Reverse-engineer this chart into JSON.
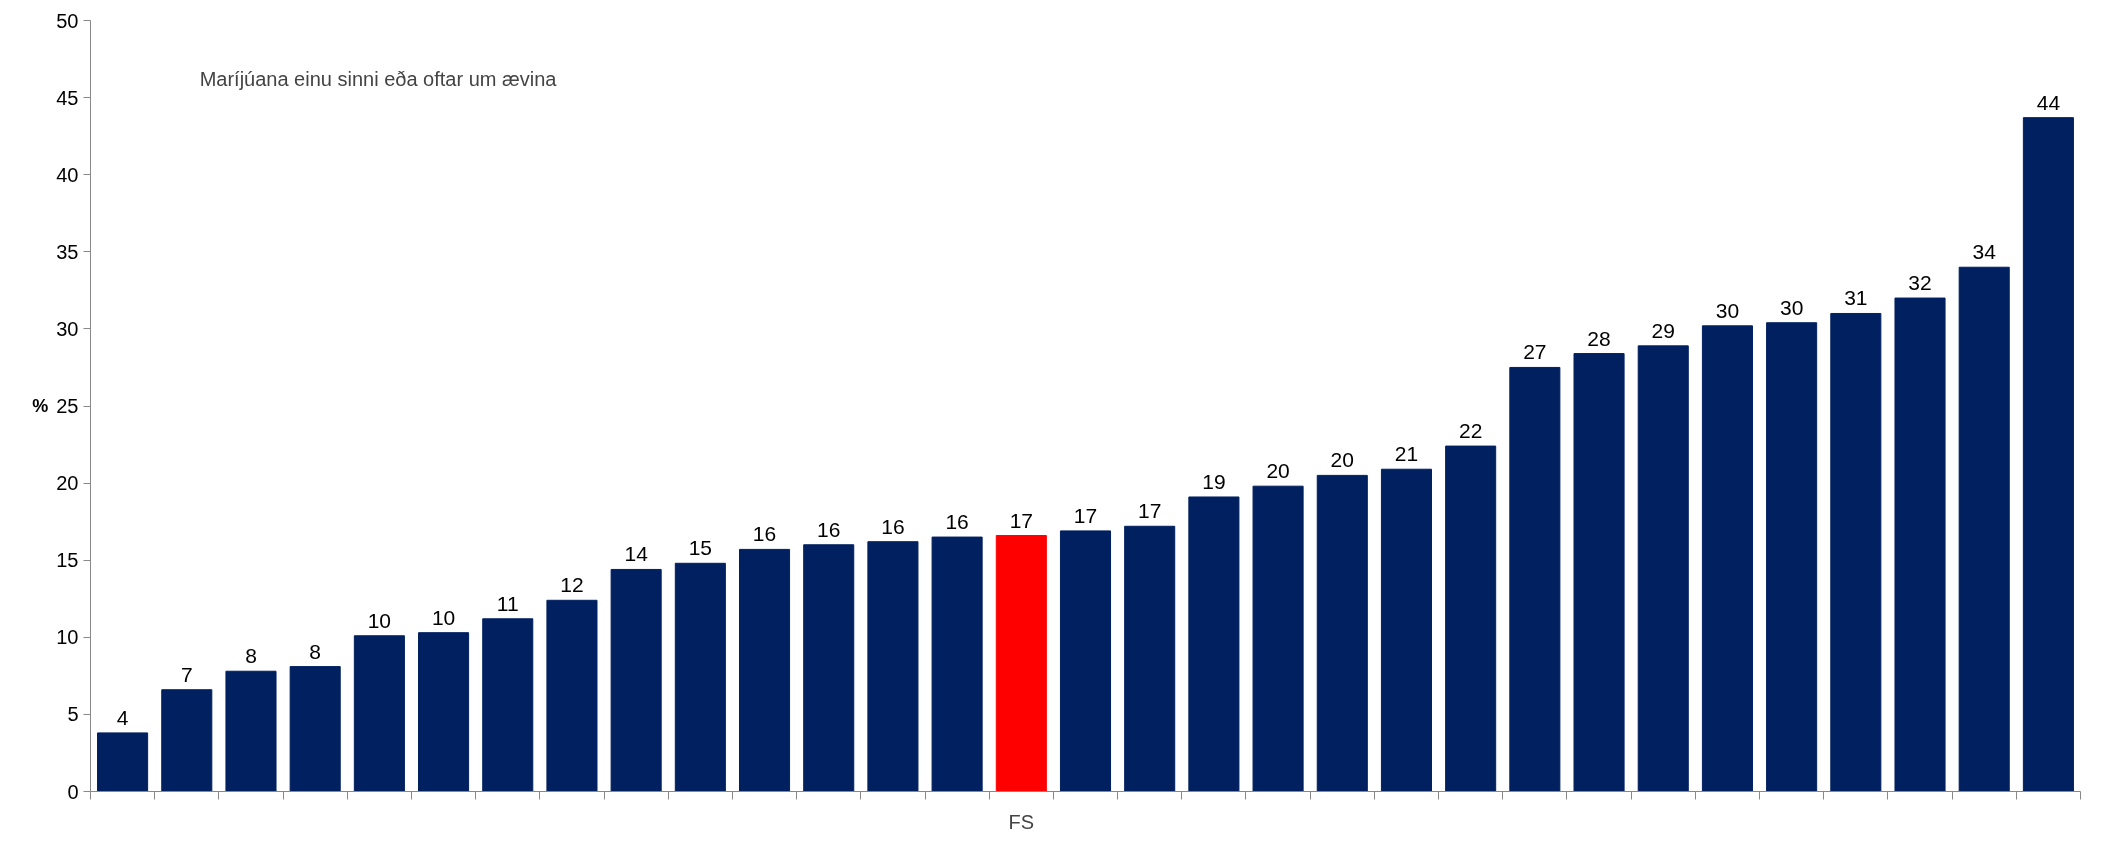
{
  "chart_data": {
    "type": "bar",
    "categories": [
      null,
      null,
      null,
      null,
      null,
      null,
      null,
      null,
      null,
      null,
      null,
      null,
      null,
      null,
      "FS",
      null,
      null,
      null,
      null,
      null,
      null,
      null,
      null,
      null,
      null,
      null,
      null,
      null,
      null,
      null,
      null
    ],
    "values": [
      3.8,
      6.6,
      7.8,
      8.1,
      10.1,
      10.3,
      11.2,
      12.4,
      14.4,
      14.8,
      15.7,
      16.0,
      16.2,
      16.5,
      16.6,
      16.9,
      17.2,
      19.1,
      19.8,
      20.5,
      20.9,
      22.4,
      27.5,
      28.4,
      28.9,
      30.2,
      30.4,
      31.0,
      32.0,
      34.0,
      43.7
    ],
    "value_labels": [
      "4",
      "7",
      "8",
      "8",
      "10",
      "10",
      "11",
      "12",
      "14",
      "15",
      "16",
      "16",
      "16",
      "16",
      "17",
      "17",
      "17",
      "19",
      "20",
      "20",
      "21",
      "22",
      "27",
      "28",
      "29",
      "30",
      "30",
      "31",
      "32",
      "34",
      "44"
    ],
    "colors": [
      "#002060",
      "#002060",
      "#002060",
      "#002060",
      "#002060",
      "#002060",
      "#002060",
      "#002060",
      "#002060",
      "#002060",
      "#002060",
      "#002060",
      "#002060",
      "#002060",
      "#ff0000",
      "#002060",
      "#002060",
      "#002060",
      "#002060",
      "#002060",
      "#002060",
      "#002060",
      "#002060",
      "#002060",
      "#002060",
      "#002060",
      "#002060",
      "#002060",
      "#002060",
      "#002060",
      "#002060"
    ],
    "ylabel": "%",
    "annotations": [
      "Maríjúana einu sinni eða oftar um ævina"
    ],
    "ylim": [
      0,
      50
    ],
    "yticks": [
      0,
      5,
      10,
      15,
      20,
      25,
      30,
      35,
      40,
      45,
      50
    ],
    "grid": false
  }
}
